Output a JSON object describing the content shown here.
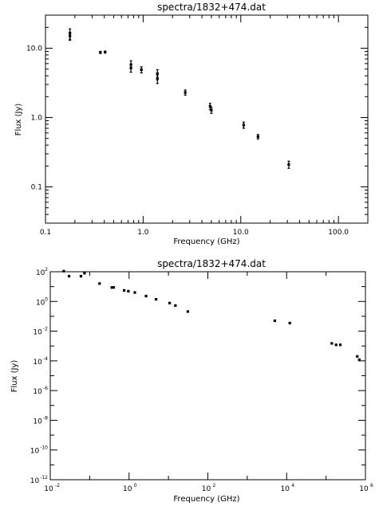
{
  "chart_data": [
    {
      "type": "scatter",
      "title": "spectra/1832+474.dat",
      "xlabel": "Frequency (GHz)",
      "ylabel": "Flux (Jy)",
      "xscale": "log",
      "yscale": "log",
      "xlim": [
        0.1,
        200
      ],
      "ylim": [
        0.03,
        30
      ],
      "xticklabels": [
        "0.1",
        "1.0",
        "10.0",
        "100.0"
      ],
      "xtickvalues": [
        0.1,
        1,
        10,
        100
      ],
      "yticklabels": [
        "0.1",
        "1.0",
        "10.0"
      ],
      "ytickvalues": [
        0.1,
        1,
        10
      ],
      "points": [
        {
          "x": 0.178,
          "y": 16.5,
          "yerr": [
            13.5,
            19.0
          ]
        },
        {
          "x": 0.178,
          "y": 15.0,
          "yerr": [
            13.0,
            17.0
          ]
        },
        {
          "x": 0.365,
          "y": 8.7,
          "yerr": [
            8.4,
            9.0
          ]
        },
        {
          "x": 0.408,
          "y": 8.8,
          "yerr": [
            8.5,
            9.1
          ]
        },
        {
          "x": 0.75,
          "y": 5.8,
          "yerr": [
            5.1,
            6.6
          ]
        },
        {
          "x": 0.75,
          "y": 5.2,
          "yerr": [
            4.5,
            5.9
          ]
        },
        {
          "x": 0.96,
          "y": 4.9,
          "yerr": [
            4.4,
            5.4
          ]
        },
        {
          "x": 1.4,
          "y": 4.3,
          "yerr": [
            3.8,
            4.9
          ]
        },
        {
          "x": 1.4,
          "y": 3.6,
          "yerr": [
            3.1,
            4.1
          ]
        },
        {
          "x": 2.7,
          "y": 2.3,
          "yerr": [
            2.1,
            2.5
          ]
        },
        {
          "x": 4.85,
          "y": 1.45,
          "yerr": [
            1.3,
            1.6
          ]
        },
        {
          "x": 5.0,
          "y": 1.28,
          "yerr": [
            1.15,
            1.41
          ]
        },
        {
          "x": 10.7,
          "y": 0.78,
          "yerr": [
            0.7,
            0.86
          ]
        },
        {
          "x": 15.0,
          "y": 0.53,
          "yerr": [
            0.49,
            0.57
          ]
        },
        {
          "x": 31.0,
          "y": 0.21,
          "yerr": [
            0.185,
            0.235
          ]
        }
      ]
    },
    {
      "type": "scatter",
      "title": "spectra/1832+474.dat",
      "xlabel": "Frequency (GHz)",
      "ylabel": "Flux (Jy)",
      "xscale": "log",
      "yscale": "log",
      "xlim": [
        0.01,
        1000000
      ],
      "ylim": [
        1e-12,
        100
      ],
      "xtickexponents": [
        "-2",
        "0",
        "2",
        "4",
        "6"
      ],
      "xtickvalues": [
        0.01,
        1,
        100,
        10000,
        1000000
      ],
      "ytickexponents": [
        "-12",
        "-10",
        "-8",
        "-6",
        "-4",
        "-2",
        "0",
        "2"
      ],
      "ytickvalues": [
        1e-12,
        1e-10,
        1e-08,
        1e-06,
        0.0001,
        0.01,
        1,
        100
      ],
      "points": [
        {
          "x": 0.022,
          "y": 110
        },
        {
          "x": 0.03,
          "y": 50
        },
        {
          "x": 0.06,
          "y": 50
        },
        {
          "x": 0.074,
          "y": 80
        },
        {
          "x": 0.178,
          "y": 16
        },
        {
          "x": 0.365,
          "y": 8.7
        },
        {
          "x": 0.408,
          "y": 8.8
        },
        {
          "x": 0.75,
          "y": 5.5
        },
        {
          "x": 0.96,
          "y": 4.9
        },
        {
          "x": 1.4,
          "y": 4.0
        },
        {
          "x": 2.7,
          "y": 2.3
        },
        {
          "x": 4.85,
          "y": 1.4
        },
        {
          "x": 10.7,
          "y": 0.78
        },
        {
          "x": 15.0,
          "y": 0.53
        },
        {
          "x": 31.0,
          "y": 0.21
        },
        {
          "x": 5000,
          "y": 0.05
        },
        {
          "x": 12000,
          "y": 0.035
        },
        {
          "x": 140000,
          "y": 0.0015
        },
        {
          "x": 180000,
          "y": 0.0012
        },
        {
          "x": 230000,
          "y": 0.0012
        },
        {
          "x": 620000,
          "y": 0.0002
        },
        {
          "x": 700000,
          "y": 0.00012
        }
      ]
    }
  ]
}
